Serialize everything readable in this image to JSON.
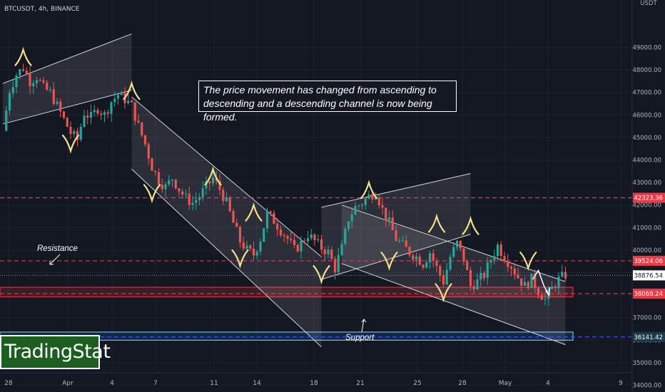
{
  "header": {
    "symbol_line": "BTCUSDT, 4h, BINANCE"
  },
  "annotation": {
    "text": "The price movement has changed from ascending to descending and a descending channel is now being formed."
  },
  "labels": {
    "resistance": "Resistance",
    "support": "Support"
  },
  "logo": {
    "text": "TradingStat"
  },
  "colors": {
    "background": "#131722",
    "up": "#26a69a",
    "down": "#ef5350",
    "red_level": "#f23645",
    "blue_level": "#2962ff",
    "channel": "#ffffff",
    "zigzag": "#f5e08a"
  },
  "chart_data": {
    "type": "candlestick",
    "title": "",
    "y_axis_unit": "USDT",
    "y_ticks": [
      "49000.00",
      "48000.00",
      "47000.00",
      "46000.00",
      "45000.00",
      "44000.00",
      "43000.00",
      "42000.00",
      "41000.00",
      "40000.00",
      "39000.00",
      "38000.00",
      "37000.00",
      "36000.00",
      "35000.00",
      "34000.00"
    ],
    "y_tick_values": [
      49000,
      48000,
      47000,
      46000,
      45000,
      44000,
      43000,
      42000,
      41000,
      40000,
      39000,
      38000,
      37000,
      36000,
      35000,
      34000
    ],
    "x_ticks": [
      "28",
      "Apr",
      "4",
      "7",
      "11",
      "14",
      "18",
      "21",
      "25",
      "28",
      "May",
      "4",
      "9"
    ],
    "ylim": [
      33700,
      50500
    ],
    "levels": [
      {
        "value": 42323.36,
        "label": "42323.36",
        "style": "dashed",
        "color": "red"
      },
      {
        "value": 39524.06,
        "label": "39524.06",
        "style": "dashed",
        "color": "red"
      },
      {
        "value": 38876.54,
        "label": "38876.54",
        "style": "dotted",
        "color": "gray",
        "note": "last price"
      },
      {
        "value": 38068.24,
        "label": "38068.24",
        "style": "dashed",
        "color": "red"
      },
      {
        "value": 36141.42,
        "label": "36141.42",
        "style": "dashed",
        "color": "blue"
      }
    ],
    "zones": [
      {
        "name": "resistance-zone",
        "from": 37920,
        "to": 38350,
        "color": "red"
      },
      {
        "name": "support-zone",
        "from": 36000,
        "to": 36360,
        "color": "blue"
      }
    ],
    "close_path": [
      [
        0,
        45300
      ],
      [
        2,
        47100
      ],
      [
        4,
        47800
      ],
      [
        6,
        48100
      ],
      [
        8,
        47500
      ],
      [
        10,
        47700
      ],
      [
        12,
        47200
      ],
      [
        14,
        47000
      ],
      [
        16,
        46400
      ],
      [
        18,
        45800
      ],
      [
        20,
        45200
      ],
      [
        22,
        44900
      ],
      [
        24,
        46100
      ],
      [
        26,
        45900
      ],
      [
        28,
        46300
      ],
      [
        30,
        46000
      ],
      [
        32,
        46600
      ],
      [
        34,
        46900
      ],
      [
        36,
        46700
      ],
      [
        38,
        46400
      ],
      [
        40,
        45500
      ],
      [
        42,
        44700
      ],
      [
        44,
        43700
      ],
      [
        46,
        43100
      ],
      [
        48,
        42800
      ],
      [
        50,
        43200
      ],
      [
        52,
        42700
      ],
      [
        54,
        42300
      ],
      [
        56,
        42100
      ],
      [
        58,
        42400
      ],
      [
        60,
        42800
      ],
      [
        62,
        43200
      ],
      [
        64,
        42700
      ],
      [
        66,
        42100
      ],
      [
        68,
        41200
      ],
      [
        70,
        40400
      ],
      [
        72,
        40000
      ],
      [
        74,
        39800
      ],
      [
        76,
        40500
      ],
      [
        78,
        41600
      ],
      [
        80,
        41300
      ],
      [
        82,
        40900
      ],
      [
        84,
        40500
      ],
      [
        86,
        40000
      ],
      [
        88,
        40300
      ],
      [
        90,
        40700
      ],
      [
        92,
        40400
      ],
      [
        94,
        40100
      ],
      [
        96,
        39900
      ],
      [
        98,
        39200
      ],
      [
        100,
        40100
      ],
      [
        102,
        41400
      ],
      [
        104,
        41900
      ],
      [
        106,
        42100
      ],
      [
        108,
        42400
      ],
      [
        110,
        42600
      ],
      [
        112,
        41800
      ],
      [
        114,
        41200
      ],
      [
        116,
        40500
      ],
      [
        118,
        40200
      ],
      [
        120,
        39900
      ],
      [
        122,
        39700
      ],
      [
        124,
        39400
      ],
      [
        126,
        39900
      ],
      [
        128,
        39200
      ],
      [
        130,
        38600
      ],
      [
        132,
        39700
      ],
      [
        134,
        40300
      ],
      [
        136,
        39600
      ],
      [
        138,
        38400
      ],
      [
        140,
        38600
      ],
      [
        142,
        38900
      ],
      [
        144,
        39600
      ],
      [
        146,
        40200
      ],
      [
        148,
        39700
      ],
      [
        150,
        39300
      ],
      [
        152,
        38800
      ],
      [
        154,
        38400
      ],
      [
        156,
        38700
      ],
      [
        158,
        38200
      ],
      [
        160,
        37800
      ],
      [
        162,
        38300
      ],
      [
        164,
        38700
      ],
      [
        166,
        38900
      ]
    ],
    "channels": [
      {
        "name": "ascending-channel-1",
        "lower": [
          [
            0,
            45600
          ],
          [
            38,
            47100
          ]
        ],
        "upper": [
          [
            0,
            47400
          ],
          [
            38,
            49600
          ]
        ]
      },
      {
        "name": "descending-channel-1",
        "upper": [
          [
            38,
            46800
          ],
          [
            94,
            39700
          ]
        ],
        "lower": [
          [
            38,
            43600
          ],
          [
            94,
            35700
          ]
        ]
      },
      {
        "name": "ascending-channel-2",
        "lower": [
          [
            94,
            38700
          ],
          [
            138,
            40700
          ]
        ],
        "upper": [
          [
            94,
            41900
          ],
          [
            138,
            43400
          ]
        ]
      },
      {
        "name": "descending-channel-2",
        "upper": [
          [
            100,
            42000
          ],
          [
            166,
            38600
          ]
        ],
        "lower": [
          [
            100,
            39400
          ],
          [
            166,
            35800
          ]
        ]
      }
    ]
  }
}
